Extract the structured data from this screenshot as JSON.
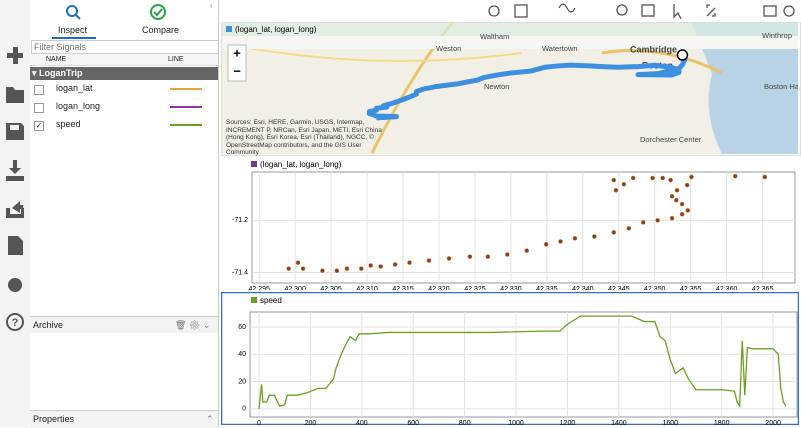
{
  "inspect_panel": {
    "tabs": [
      "Inspect",
      "Compare"
    ],
    "filter_placeholder": "Filter Signals",
    "columns": [
      "NAME",
      "LINE"
    ],
    "group": "LoganTrip",
    "signals": [
      {
        "name": "logan_lat",
        "color": "#e8a33d",
        "checked": false
      },
      {
        "name": "logan_long",
        "color": "#8e3a9e",
        "checked": false
      },
      {
        "name": "speed",
        "color": "#6aa121",
        "checked": true
      }
    ],
    "archive": "Archive",
    "properties": "Properties"
  },
  "map": {
    "legend": "(logan_lat, logan_long)",
    "color": "#3d8fe0",
    "labels": [
      "Weston",
      "Waltham",
      "Watertown",
      "Cambridge",
      "Boston",
      "Newton",
      "Winthrop",
      "Boston Harbor",
      "Dorchester Center"
    ],
    "sources": "Sources: Esri, HERE, Garmin, USGS, Intermap, INCREMENT P, NRCan, Esri Japan, METI, Esri China (Hong Kong), Esri Korea, Esri (Thailand), NGCC, © OpenStreetMap contributors, and the GIS User Community"
  },
  "chart_data": [
    {
      "type": "scatter",
      "series": [
        {
          "name": "(logan_lat, logan_long)",
          "color": "#8b3a2a",
          "x": [
            42.2991,
            42.3004,
            42.3011,
            42.3038,
            42.3058,
            42.3072,
            42.3092,
            42.3105,
            42.3119,
            42.3139,
            42.3159,
            42.3186,
            42.3214,
            42.3243,
            42.3268,
            42.3295,
            42.3322,
            42.3349,
            42.3369,
            42.3389,
            42.3416,
            42.3443,
            42.3464,
            42.3484,
            42.3504,
            42.3524,
            42.3538,
            42.3546,
            42.3538,
            42.353,
            42.3524,
            42.3531,
            42.3545,
            42.3522,
            42.3497,
            42.347,
            42.3443,
            42.3446,
            42.3457,
            42.3511,
            42.3551,
            42.3612,
            42.3653
          ],
          "values": [
            -71.385,
            -71.362,
            -71.385,
            -71.393,
            -71.393,
            -71.385,
            -71.385,
            -71.373,
            -71.377,
            -71.369,
            -71.362,
            -71.354,
            -71.346,
            -71.339,
            -71.339,
            -71.331,
            -71.316,
            -71.292,
            -71.281,
            -71.269,
            -71.262,
            -71.246,
            -71.231,
            -71.208,
            -71.2,
            -71.192,
            -71.177,
            -71.162,
            -71.138,
            -71.123,
            -71.108,
            -71.085,
            -71.065,
            -71.046,
            -71.038,
            -71.038,
            -71.046,
            -71.085,
            -71.062,
            -71.038,
            -71.034,
            -71.031,
            -71.034
          ]
        }
      ],
      "xlim": [
        42.294,
        42.3695
      ],
      "ylim": [
        -71.44,
        -71.015
      ],
      "xticks": [
        {
          "value": 42.295,
          "label": "42.295"
        },
        {
          "value": 42.3,
          "label": "42.300"
        },
        {
          "value": 42.305,
          "label": "42.305"
        },
        {
          "value": 42.31,
          "label": "42.310"
        },
        {
          "value": 42.315,
          "label": "42.315"
        },
        {
          "value": 42.32,
          "label": "42.320"
        },
        {
          "value": 42.325,
          "label": "42.325"
        },
        {
          "value": 42.33,
          "label": "42.330"
        },
        {
          "value": 42.335,
          "label": "42.335"
        },
        {
          "value": 42.34,
          "label": "42.340"
        },
        {
          "value": 42.345,
          "label": "42.345"
        },
        {
          "value": 42.35,
          "label": "42.350"
        },
        {
          "value": 42.355,
          "label": "42.355"
        },
        {
          "value": 42.36,
          "label": "42.360"
        },
        {
          "value": 42.365,
          "label": "42.365"
        }
      ],
      "yticks": [
        -71.2,
        -71.4
      ],
      "grid": true
    },
    {
      "type": "line",
      "series": [
        {
          "name": "speed",
          "color": "#6aa121",
          "values": [
            0,
            18,
            5,
            5,
            10,
            10,
            2,
            3,
            10,
            10,
            12,
            15,
            15,
            22,
            30,
            40,
            48,
            53,
            50,
            55,
            55,
            56,
            56,
            56,
            57,
            57,
            57,
            62,
            68,
            68,
            68,
            64,
            64,
            53,
            50,
            36,
            26,
            30,
            22,
            14,
            14,
            14,
            14,
            13,
            5,
            2,
            50,
            10,
            45,
            44,
            44,
            44,
            40,
            15,
            5,
            2
          ]
        }
      ],
      "x": [
        0,
        10,
        15,
        30,
        40,
        60,
        80,
        100,
        110,
        150,
        190,
        230,
        260,
        290,
        300,
        320,
        340,
        355,
        375,
        390,
        430,
        500,
        700,
        900,
        1100,
        1150,
        1170,
        1200,
        1250,
        1350,
        1450,
        1500,
        1540,
        1560,
        1580,
        1600,
        1620,
        1650,
        1670,
        1700,
        1720,
        1750,
        1800,
        1850,
        1860,
        1870,
        1880,
        1890,
        1900,
        1920,
        1960,
        2000,
        2020,
        2030,
        2040,
        2050
      ],
      "xlim": [
        -35,
        2093
      ],
      "ylim": [
        -6,
        71
      ],
      "xticks": [
        0,
        200,
        400,
        600,
        800,
        1000,
        1200,
        1400,
        1600,
        1800,
        2000
      ],
      "yticks": [
        0,
        20,
        40,
        60
      ],
      "grid": true
    }
  ]
}
